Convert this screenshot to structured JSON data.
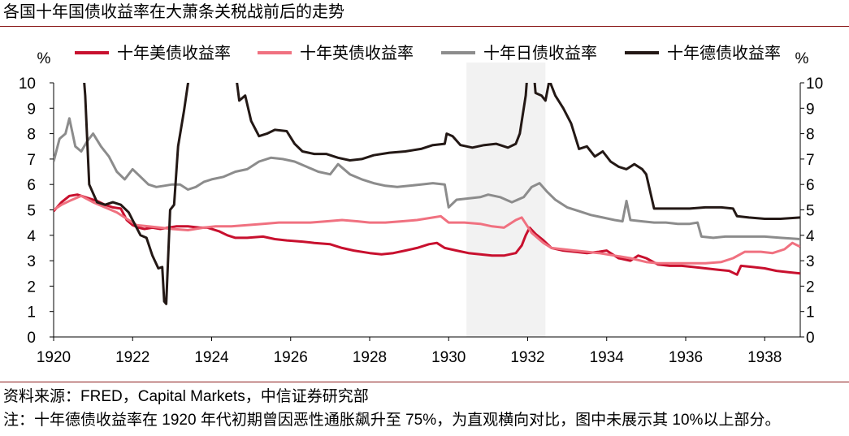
{
  "title": "各国十年国债收益率在大萧条关税战前后的走势",
  "source": "资料来源：FRED，Capital Markets，中信证券研究部",
  "note": "注：十年德债收益率在 1920 年代初期曾因恶性通胀飙升至 75%，为直观横向对比，图中未展示其 10%以上部分。",
  "chart_data": {
    "type": "line",
    "ylabel_left": "%",
    "ylabel_right": "%",
    "ylim": [
      0,
      10
    ],
    "xlim": [
      1920,
      1938.9
    ],
    "yticks": [
      0,
      1,
      2,
      3,
      4,
      5,
      6,
      7,
      8,
      9,
      10
    ],
    "xticks": [
      1920,
      1922,
      1924,
      1926,
      1928,
      1930,
      1932,
      1934,
      1936,
      1938
    ],
    "shaded_region": [
      1930.45,
      1932.45
    ],
    "legend_position": "top",
    "series": [
      {
        "name": "十年美债收益率",
        "color": "#c8102e",
        "points": [
          [
            1920,
            4.95
          ],
          [
            1920.2,
            5.3
          ],
          [
            1920.4,
            5.55
          ],
          [
            1920.6,
            5.6
          ],
          [
            1920.9,
            5.45
          ],
          [
            1921.1,
            5.35
          ],
          [
            1921.3,
            5.2
          ],
          [
            1921.5,
            5.1
          ],
          [
            1921.7,
            5.05
          ],
          [
            1921.85,
            4.6
          ],
          [
            1922,
            4.4
          ],
          [
            1922.15,
            4.3
          ],
          [
            1922.3,
            4.25
          ],
          [
            1922.5,
            4.3
          ],
          [
            1922.7,
            4.25
          ],
          [
            1922.9,
            4.3
          ],
          [
            1923.1,
            4.35
          ],
          [
            1923.4,
            4.35
          ],
          [
            1923.7,
            4.3
          ],
          [
            1923.9,
            4.3
          ],
          [
            1924.2,
            4.15
          ],
          [
            1924.4,
            4.0
          ],
          [
            1924.6,
            3.9
          ],
          [
            1924.9,
            3.9
          ],
          [
            1925.3,
            3.95
          ],
          [
            1925.6,
            3.85
          ],
          [
            1925.9,
            3.8
          ],
          [
            1926.3,
            3.75
          ],
          [
            1926.6,
            3.7
          ],
          [
            1927,
            3.65
          ],
          [
            1927.3,
            3.5
          ],
          [
            1927.6,
            3.4
          ],
          [
            1928,
            3.3
          ],
          [
            1928.3,
            3.25
          ],
          [
            1928.6,
            3.3
          ],
          [
            1928.9,
            3.4
          ],
          [
            1929.2,
            3.5
          ],
          [
            1929.5,
            3.65
          ],
          [
            1929.7,
            3.7
          ],
          [
            1929.9,
            3.5
          ],
          [
            1930.2,
            3.4
          ],
          [
            1930.5,
            3.3
          ],
          [
            1930.8,
            3.25
          ],
          [
            1931.1,
            3.2
          ],
          [
            1931.4,
            3.2
          ],
          [
            1931.7,
            3.3
          ],
          [
            1931.85,
            3.6
          ],
          [
            1931.95,
            4.0
          ],
          [
            1932.05,
            4.3
          ],
          [
            1932.2,
            4.05
          ],
          [
            1932.4,
            3.8
          ],
          [
            1932.6,
            3.5
          ],
          [
            1932.9,
            3.4
          ],
          [
            1933.2,
            3.35
          ],
          [
            1933.5,
            3.3
          ],
          [
            1933.8,
            3.35
          ],
          [
            1934,
            3.4
          ],
          [
            1934.3,
            3.1
          ],
          [
            1934.6,
            3.0
          ],
          [
            1934.8,
            3.2
          ],
          [
            1935,
            3.1
          ],
          [
            1935.3,
            2.85
          ],
          [
            1935.6,
            2.8
          ],
          [
            1935.9,
            2.8
          ],
          [
            1936.2,
            2.75
          ],
          [
            1936.5,
            2.7
          ],
          [
            1936.8,
            2.65
          ],
          [
            1937.1,
            2.6
          ],
          [
            1937.3,
            2.45
          ],
          [
            1937.4,
            2.8
          ],
          [
            1937.7,
            2.75
          ],
          [
            1938,
            2.7
          ],
          [
            1938.3,
            2.6
          ],
          [
            1938.6,
            2.55
          ],
          [
            1938.9,
            2.5
          ]
        ]
      },
      {
        "name": "十年英债收益率",
        "color": "#f07180",
        "points": [
          [
            1920,
            5.0
          ],
          [
            1920.2,
            5.2
          ],
          [
            1920.4,
            5.35
          ],
          [
            1920.7,
            5.55
          ],
          [
            1921,
            5.3
          ],
          [
            1921.3,
            5.1
          ],
          [
            1921.6,
            4.9
          ],
          [
            1921.9,
            4.6
          ],
          [
            1922.1,
            4.4
          ],
          [
            1922.4,
            4.35
          ],
          [
            1922.7,
            4.3
          ],
          [
            1923,
            4.25
          ],
          [
            1923.4,
            4.2
          ],
          [
            1923.8,
            4.3
          ],
          [
            1924.1,
            4.35
          ],
          [
            1924.5,
            4.35
          ],
          [
            1924.9,
            4.4
          ],
          [
            1925.3,
            4.45
          ],
          [
            1925.7,
            4.5
          ],
          [
            1926.1,
            4.5
          ],
          [
            1926.5,
            4.5
          ],
          [
            1926.9,
            4.55
          ],
          [
            1927.3,
            4.6
          ],
          [
            1927.7,
            4.55
          ],
          [
            1928,
            4.5
          ],
          [
            1928.4,
            4.5
          ],
          [
            1928.8,
            4.55
          ],
          [
            1929.2,
            4.6
          ],
          [
            1929.6,
            4.7
          ],
          [
            1929.8,
            4.75
          ],
          [
            1930,
            4.5
          ],
          [
            1930.4,
            4.5
          ],
          [
            1930.8,
            4.45
          ],
          [
            1931.1,
            4.35
          ],
          [
            1931.4,
            4.3
          ],
          [
            1931.7,
            4.6
          ],
          [
            1931.85,
            4.7
          ],
          [
            1932.1,
            4.1
          ],
          [
            1932.4,
            3.7
          ],
          [
            1932.6,
            3.5
          ],
          [
            1932.9,
            3.45
          ],
          [
            1933.2,
            3.4
          ],
          [
            1933.5,
            3.35
          ],
          [
            1933.8,
            3.3
          ],
          [
            1934.2,
            3.2
          ],
          [
            1934.6,
            3.1
          ],
          [
            1935,
            2.95
          ],
          [
            1935.3,
            2.9
          ],
          [
            1935.7,
            2.9
          ],
          [
            1936.1,
            2.9
          ],
          [
            1936.5,
            2.9
          ],
          [
            1936.9,
            2.95
          ],
          [
            1937.2,
            3.1
          ],
          [
            1937.5,
            3.35
          ],
          [
            1937.9,
            3.35
          ],
          [
            1938.2,
            3.3
          ],
          [
            1938.5,
            3.45
          ],
          [
            1938.7,
            3.7
          ],
          [
            1938.9,
            3.55
          ]
        ]
      },
      {
        "name": "十年日债收益率",
        "color": "#8c8c8c",
        "points": [
          [
            1920,
            6.9
          ],
          [
            1920.15,
            7.8
          ],
          [
            1920.3,
            8.0
          ],
          [
            1920.4,
            8.6
          ],
          [
            1920.55,
            7.5
          ],
          [
            1920.7,
            7.3
          ],
          [
            1920.85,
            7.7
          ],
          [
            1921,
            8.0
          ],
          [
            1921.2,
            7.5
          ],
          [
            1921.4,
            7.1
          ],
          [
            1921.6,
            6.5
          ],
          [
            1921.8,
            6.2
          ],
          [
            1922,
            6.6
          ],
          [
            1922.2,
            6.3
          ],
          [
            1922.4,
            6.0
          ],
          [
            1922.6,
            5.9
          ],
          [
            1922.8,
            5.95
          ],
          [
            1923,
            6.0
          ],
          [
            1923.2,
            6.0
          ],
          [
            1923.4,
            5.8
          ],
          [
            1923.6,
            5.9
          ],
          [
            1923.8,
            6.1
          ],
          [
            1924,
            6.2
          ],
          [
            1924.3,
            6.3
          ],
          [
            1924.6,
            6.5
          ],
          [
            1924.9,
            6.6
          ],
          [
            1925.2,
            6.9
          ],
          [
            1925.5,
            7.05
          ],
          [
            1925.8,
            7.0
          ],
          [
            1926.1,
            6.9
          ],
          [
            1926.4,
            6.7
          ],
          [
            1926.7,
            6.5
          ],
          [
            1927,
            6.4
          ],
          [
            1927.2,
            6.8
          ],
          [
            1927.5,
            6.4
          ],
          [
            1927.8,
            6.2
          ],
          [
            1928.1,
            6.05
          ],
          [
            1928.4,
            5.95
          ],
          [
            1928.7,
            5.9
          ],
          [
            1929,
            5.95
          ],
          [
            1929.3,
            6.0
          ],
          [
            1929.6,
            6.05
          ],
          [
            1929.9,
            6.0
          ],
          [
            1930,
            5.1
          ],
          [
            1930.2,
            5.4
          ],
          [
            1930.5,
            5.45
          ],
          [
            1930.8,
            5.5
          ],
          [
            1931,
            5.6
          ],
          [
            1931.3,
            5.5
          ],
          [
            1931.6,
            5.3
          ],
          [
            1931.9,
            5.5
          ],
          [
            1932.1,
            5.9
          ],
          [
            1932.3,
            6.05
          ],
          [
            1932.5,
            5.7
          ],
          [
            1932.7,
            5.4
          ],
          [
            1933,
            5.1
          ],
          [
            1933.3,
            4.95
          ],
          [
            1933.6,
            4.8
          ],
          [
            1933.9,
            4.7
          ],
          [
            1934.2,
            4.6
          ],
          [
            1934.4,
            4.55
          ],
          [
            1934.5,
            5.35
          ],
          [
            1934.6,
            4.6
          ],
          [
            1934.9,
            4.55
          ],
          [
            1935.2,
            4.5
          ],
          [
            1935.5,
            4.5
          ],
          [
            1935.8,
            4.45
          ],
          [
            1936.1,
            4.45
          ],
          [
            1936.3,
            4.5
          ],
          [
            1936.4,
            3.95
          ],
          [
            1936.7,
            3.9
          ],
          [
            1937,
            3.95
          ],
          [
            1937.3,
            3.95
          ],
          [
            1937.7,
            3.95
          ],
          [
            1938,
            3.95
          ],
          [
            1938.4,
            3.9
          ],
          [
            1938.9,
            3.85
          ]
        ]
      },
      {
        "name": "十年德债收益率",
        "color": "#231815",
        "points": [
          [
            1920.75,
            10.5
          ],
          [
            1920.8,
            9.5
          ],
          [
            1920.9,
            6.0
          ],
          [
            1921.1,
            5.3
          ],
          [
            1921.3,
            5.2
          ],
          [
            1921.5,
            5.3
          ],
          [
            1921.7,
            5.2
          ],
          [
            1921.9,
            4.9
          ],
          [
            1922,
            4.6
          ],
          [
            1922.1,
            4.3
          ],
          [
            1922.2,
            4.0
          ],
          [
            1922.35,
            3.9
          ],
          [
            1922.5,
            3.2
          ],
          [
            1922.65,
            2.7
          ],
          [
            1922.75,
            2.75
          ],
          [
            1922.8,
            1.4
          ],
          [
            1922.85,
            1.3
          ],
          [
            1922.95,
            5.0
          ],
          [
            1923.05,
            5.2
          ],
          [
            1923.15,
            7.5
          ],
          [
            1923.3,
            8.9
          ],
          [
            1923.45,
            10.5
          ],
          [
            1924.6,
            10.5
          ],
          [
            1924.7,
            9.3
          ],
          [
            1924.85,
            9.5
          ],
          [
            1925,
            8.5
          ],
          [
            1925.2,
            7.9
          ],
          [
            1925.4,
            8.0
          ],
          [
            1925.6,
            8.15
          ],
          [
            1925.9,
            8.1
          ],
          [
            1926.1,
            7.6
          ],
          [
            1926.3,
            7.3
          ],
          [
            1926.6,
            7.2
          ],
          [
            1926.9,
            7.2
          ],
          [
            1927.2,
            7.05
          ],
          [
            1927.5,
            6.95
          ],
          [
            1927.8,
            7.0
          ],
          [
            1928.1,
            7.15
          ],
          [
            1928.5,
            7.25
          ],
          [
            1928.9,
            7.3
          ],
          [
            1929.3,
            7.4
          ],
          [
            1929.6,
            7.55
          ],
          [
            1929.9,
            7.6
          ],
          [
            1929.95,
            8.0
          ],
          [
            1930.1,
            7.9
          ],
          [
            1930.3,
            7.55
          ],
          [
            1930.6,
            7.45
          ],
          [
            1930.9,
            7.55
          ],
          [
            1931.2,
            7.6
          ],
          [
            1931.5,
            7.45
          ],
          [
            1931.7,
            7.6
          ],
          [
            1931.8,
            8.0
          ],
          [
            1931.95,
            9.5
          ],
          [
            1932.0,
            10.5
          ],
          [
            1932.15,
            10.5
          ],
          [
            1932.2,
            9.6
          ],
          [
            1932.35,
            9.5
          ],
          [
            1932.45,
            9.3
          ],
          [
            1932.55,
            10.1
          ],
          [
            1932.7,
            9.5
          ],
          [
            1932.9,
            9.0
          ],
          [
            1933.1,
            8.4
          ],
          [
            1933.3,
            7.4
          ],
          [
            1933.5,
            7.5
          ],
          [
            1933.7,
            7.1
          ],
          [
            1933.9,
            7.3
          ],
          [
            1934.1,
            6.9
          ],
          [
            1934.3,
            6.7
          ],
          [
            1934.5,
            6.6
          ],
          [
            1934.7,
            6.8
          ],
          [
            1934.9,
            6.6
          ],
          [
            1935,
            6.4
          ],
          [
            1935.2,
            5.05
          ],
          [
            1935.5,
            5.05
          ],
          [
            1935.8,
            5.05
          ],
          [
            1936.1,
            5.05
          ],
          [
            1936.5,
            5.1
          ],
          [
            1936.9,
            5.1
          ],
          [
            1937.2,
            5.05
          ],
          [
            1937.3,
            4.75
          ],
          [
            1937.6,
            4.7
          ],
          [
            1938,
            4.65
          ],
          [
            1938.4,
            4.65
          ],
          [
            1938.9,
            4.7
          ]
        ]
      }
    ]
  }
}
